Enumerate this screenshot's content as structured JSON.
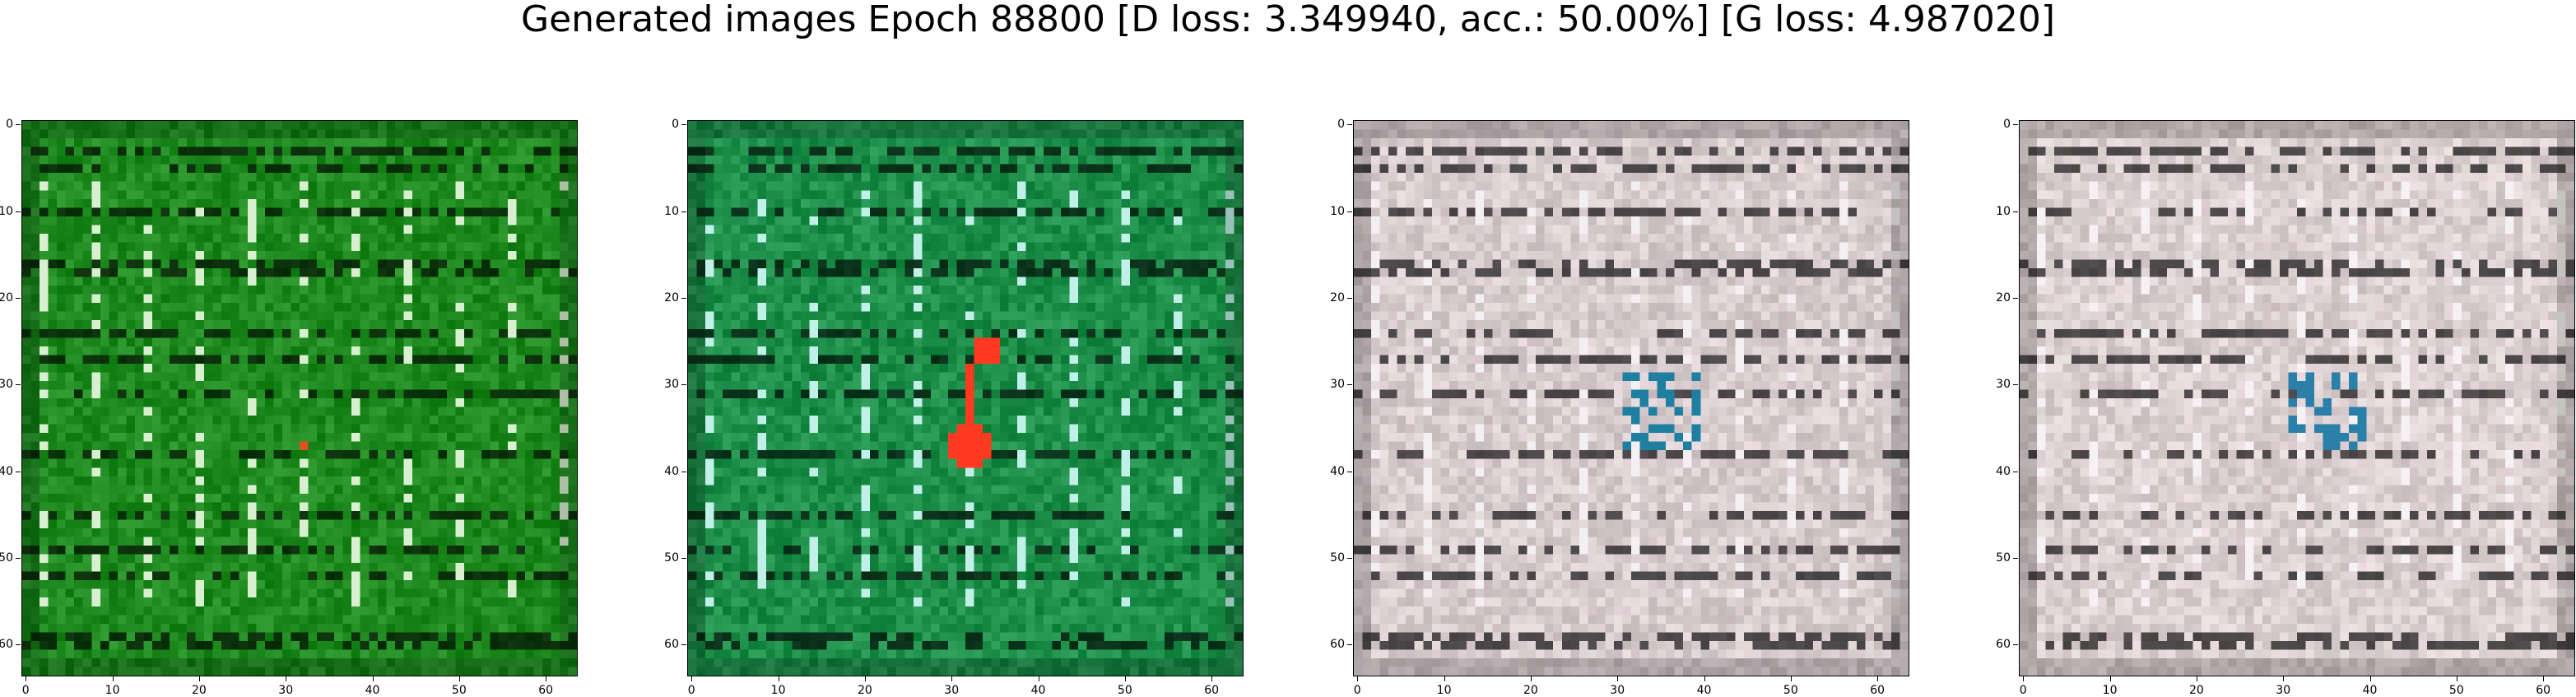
{
  "figure": {
    "title": "Generated images Epoch 88800 [D loss: 3.349940, acc.: 50.00%] [G loss: 4.987020]"
  },
  "axes": {
    "ticks": [
      "0",
      "10",
      "20",
      "30",
      "40",
      "50",
      "60"
    ],
    "range": [
      0,
      63
    ]
  },
  "images": [
    {
      "palette": "green",
      "base_color": "#1f8a1f",
      "highlight_color": "#d8f0d0",
      "accent_color": "#e05020"
    },
    {
      "palette": "teal-green",
      "base_color": "#1e8f4a",
      "highlight_color": "#c0f0e8",
      "accent_color": "#ff3a20"
    },
    {
      "palette": "pale-pink-gray",
      "base_color": "#d9cccf",
      "highlight_color": "#f4f0f2",
      "accent_color": "#1f7fa0"
    },
    {
      "palette": "pale-pink-gray",
      "base_color": "#dccfd1",
      "highlight_color": "#f6f2f3",
      "accent_color": "#2a80a8"
    }
  ]
}
